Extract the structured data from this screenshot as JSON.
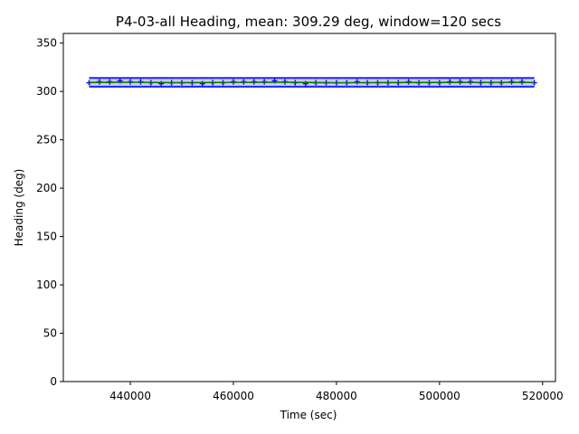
{
  "chart_data": {
    "type": "scatter",
    "title": "P4-03-all Heading, mean: 309.29 deg, window=120 secs",
    "xlabel": "Time (sec)",
    "ylabel": "Heading (deg)",
    "xlim": [
      427000,
      522500
    ],
    "ylim": [
      0,
      360
    ],
    "x_ticks": [
      440000,
      460000,
      480000,
      500000,
      520000
    ],
    "y_ticks": [
      0,
      50,
      100,
      150,
      200,
      250,
      300,
      350
    ],
    "grid": false,
    "legend": "none",
    "x_start": 432000,
    "x_end": 518400,
    "mean": 309.29,
    "band_low": 305,
    "band_high": 314,
    "series": [
      {
        "style": "blue plus markers",
        "color": "#0000ff",
        "x": [
          432000,
          434000,
          436000,
          438000,
          440000,
          442000,
          444000,
          446000,
          448000,
          450000,
          452000,
          454000,
          456000,
          458000,
          460000,
          462000,
          464000,
          466000,
          468000,
          470000,
          472000,
          474000,
          476000,
          478000,
          480000,
          482000,
          484000,
          486000,
          488000,
          490000,
          492000,
          494000,
          496000,
          498000,
          500000,
          502000,
          504000,
          506000,
          508000,
          510000,
          512000,
          514000,
          516000,
          518400
        ],
        "y": [
          309,
          310,
          310,
          311,
          310,
          310,
          309,
          308,
          309,
          309,
          309,
          308,
          309,
          309,
          310,
          310,
          310,
          310,
          311,
          310,
          309,
          308,
          309,
          309,
          309,
          309,
          310,
          309,
          309,
          309,
          309,
          310,
          309,
          309,
          309,
          310,
          310,
          310,
          309,
          309,
          309,
          310,
          310,
          309
        ]
      },
      {
        "style": "green windowed mean line",
        "color": "#008000",
        "x": [
          432000,
          440000,
          450000,
          460000,
          470000,
          480000,
          490000,
          500000,
          510000,
          518400
        ],
        "y": [
          309.3,
          309.5,
          309.1,
          309.4,
          309.6,
          309.0,
          309.2,
          309.3,
          309.4,
          309.3
        ]
      }
    ]
  }
}
